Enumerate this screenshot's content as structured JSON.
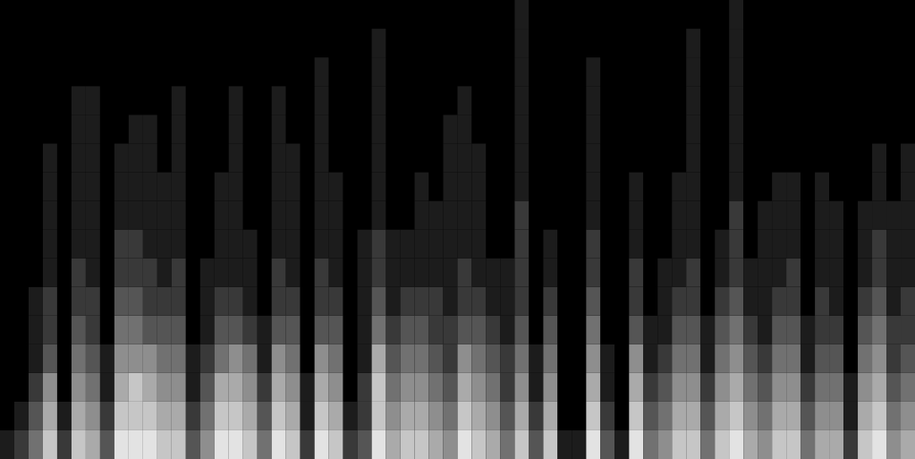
{
  "chart_data": {
    "type": "heatmap",
    "xlim": [
      0,
      64
    ],
    "ylim": [
      0,
      16
    ],
    "zlim": [
      0,
      9
    ],
    "tick_labels": false,
    "cells": [
      [
        1,
        0,
        0,
        0,
        0,
        0,
        0,
        0,
        0,
        0,
        0,
        0,
        0,
        0,
        0,
        0
      ],
      [
        2,
        1,
        0,
        0,
        0,
        0,
        0,
        0,
        0,
        0,
        0,
        0,
        0,
        0,
        0,
        0
      ],
      [
        4,
        3,
        2,
        1,
        1,
        1,
        0,
        0,
        0,
        0,
        0,
        0,
        0,
        0,
        0,
        0
      ],
      [
        7,
        6,
        5,
        3,
        2,
        2,
        1,
        1,
        1,
        1,
        1,
        0,
        0,
        0,
        0,
        0
      ],
      [
        2,
        1,
        0,
        0,
        0,
        0,
        0,
        0,
        0,
        0,
        0,
        0,
        0,
        0,
        0,
        0
      ],
      [
        7,
        6,
        5,
        4,
        3,
        2,
        2,
        1,
        1,
        1,
        1,
        1,
        1,
        0,
        0,
        0
      ],
      [
        6,
        5,
        4,
        3,
        2,
        2,
        1,
        1,
        1,
        1,
        1,
        1,
        1,
        0,
        0,
        0
      ],
      [
        3,
        2,
        1,
        1,
        0,
        0,
        0,
        0,
        0,
        0,
        0,
        0,
        0,
        0,
        0,
        0
      ],
      [
        8,
        7,
        6,
        5,
        4,
        3,
        2,
        2,
        1,
        1,
        1,
        0,
        0,
        0,
        0,
        0
      ],
      [
        8,
        7,
        7,
        5,
        4,
        3,
        2,
        2,
        1,
        1,
        1,
        1,
        0,
        0,
        0,
        0
      ],
      [
        8,
        7,
        6,
        5,
        3,
        2,
        2,
        1,
        1,
        1,
        1,
        1,
        0,
        0,
        0,
        0
      ],
      [
        7,
        6,
        5,
        4,
        3,
        2,
        1,
        1,
        1,
        1,
        0,
        0,
        0,
        0,
        0,
        0
      ],
      [
        7,
        6,
        5,
        4,
        3,
        2,
        2,
        1,
        1,
        1,
        1,
        1,
        1,
        0,
        0,
        0
      ],
      [
        3,
        2,
        1,
        1,
        0,
        0,
        0,
        0,
        0,
        0,
        0,
        0,
        0,
        0,
        0,
        0
      ],
      [
        5,
        4,
        3,
        2,
        1,
        1,
        1,
        0,
        0,
        0,
        0,
        0,
        0,
        0,
        0,
        0
      ],
      [
        8,
        7,
        6,
        4,
        3,
        2,
        1,
        1,
        1,
        1,
        0,
        0,
        0,
        0,
        0,
        0
      ],
      [
        8,
        7,
        6,
        5,
        3,
        2,
        1,
        1,
        1,
        1,
        1,
        1,
        1,
        0,
        0,
        0
      ],
      [
        7,
        6,
        5,
        4,
        2,
        1,
        1,
        1,
        0,
        0,
        0,
        0,
        0,
        0,
        0,
        0
      ],
      [
        4,
        3,
        2,
        1,
        1,
        0,
        0,
        0,
        0,
        0,
        0,
        0,
        0,
        0,
        0,
        0
      ],
      [
        8,
        7,
        6,
        5,
        3,
        2,
        2,
        1,
        1,
        1,
        1,
        1,
        1,
        0,
        0,
        0
      ],
      [
        7,
        6,
        5,
        4,
        3,
        2,
        1,
        1,
        1,
        1,
        1,
        0,
        0,
        0,
        0,
        0
      ],
      [
        2,
        1,
        1,
        0,
        0,
        0,
        0,
        0,
        0,
        0,
        0,
        0,
        0,
        0,
        0,
        0
      ],
      [
        8,
        7,
        6,
        5,
        3,
        2,
        2,
        1,
        1,
        1,
        1,
        1,
        1,
        1,
        0,
        0
      ],
      [
        7,
        6,
        5,
        4,
        3,
        2,
        1,
        1,
        1,
        1,
        0,
        0,
        0,
        0,
        0,
        0
      ],
      [
        2,
        1,
        0,
        0,
        0,
        0,
        0,
        0,
        0,
        0,
        0,
        0,
        0,
        0,
        0,
        0
      ],
      [
        3,
        2,
        2,
        1,
        1,
        1,
        1,
        1,
        0,
        0,
        0,
        0,
        0,
        0,
        0,
        0
      ],
      [
        8,
        7,
        7,
        6,
        4,
        3,
        2,
        2,
        1,
        1,
        1,
        1,
        1,
        1,
        1,
        0
      ],
      [
        6,
        5,
        4,
        3,
        2,
        1,
        1,
        1,
        0,
        0,
        0,
        0,
        0,
        0,
        0,
        0
      ],
      [
        7,
        6,
        5,
        4,
        3,
        2,
        1,
        1,
        0,
        0,
        0,
        0,
        0,
        0,
        0,
        0
      ],
      [
        7,
        6,
        5,
        4,
        3,
        2,
        1,
        1,
        1,
        1,
        0,
        0,
        0,
        0,
        0,
        0
      ],
      [
        6,
        5,
        4,
        3,
        2,
        2,
        1,
        1,
        1,
        0,
        0,
        0,
        0,
        0,
        0,
        0
      ],
      [
        5,
        4,
        3,
        2,
        2,
        1,
        1,
        1,
        1,
        1,
        1,
        1,
        0,
        0,
        0,
        0
      ],
      [
        8,
        7,
        6,
        5,
        3,
        2,
        2,
        1,
        1,
        1,
        1,
        1,
        1,
        0,
        0,
        0
      ],
      [
        7,
        6,
        5,
        4,
        3,
        2,
        1,
        1,
        1,
        1,
        1,
        0,
        0,
        0,
        0,
        0
      ],
      [
        6,
        5,
        4,
        3,
        2,
        1,
        1,
        0,
        0,
        0,
        0,
        0,
        0,
        0,
        0,
        0
      ],
      [
        4,
        3,
        2,
        2,
        1,
        1,
        1,
        0,
        0,
        0,
        0,
        0,
        0,
        0,
        0,
        0
      ],
      [
        7,
        6,
        5,
        4,
        3,
        2,
        2,
        2,
        2,
        1,
        1,
        1,
        1,
        1,
        1,
        1
      ],
      [
        3,
        2,
        1,
        1,
        0,
        0,
        0,
        0,
        0,
        0,
        0,
        0,
        0,
        0,
        0,
        0
      ],
      [
        7,
        6,
        5,
        4,
        3,
        2,
        1,
        1,
        0,
        0,
        0,
        0,
        0,
        0,
        0,
        0
      ],
      [
        1,
        0,
        0,
        0,
        0,
        0,
        0,
        0,
        0,
        0,
        0,
        0,
        0,
        0,
        0,
        0
      ],
      [
        1,
        0,
        0,
        0,
        0,
        0,
        0,
        0,
        0,
        0,
        0,
        0,
        0,
        0,
        0,
        0
      ],
      [
        8,
        7,
        6,
        5,
        4,
        3,
        2,
        2,
        1,
        1,
        1,
        1,
        1,
        1,
        0,
        0
      ],
      [
        3,
        2,
        1,
        1,
        0,
        0,
        0,
        0,
        0,
        0,
        0,
        0,
        0,
        0,
        0,
        0
      ],
      [
        1,
        0,
        0,
        0,
        0,
        0,
        0,
        0,
        0,
        0,
        0,
        0,
        0,
        0,
        0,
        0
      ],
      [
        8,
        7,
        6,
        5,
        3,
        2,
        2,
        1,
        1,
        1,
        0,
        0,
        0,
        0,
        0,
        0
      ],
      [
        4,
        3,
        2,
        1,
        1,
        0,
        0,
        0,
        0,
        0,
        0,
        0,
        0,
        0,
        0,
        0
      ],
      [
        5,
        4,
        3,
        2,
        1,
        1,
        1,
        0,
        0,
        0,
        0,
        0,
        0,
        0,
        0,
        0
      ],
      [
        7,
        6,
        5,
        4,
        3,
        2,
        1,
        1,
        1,
        1,
        0,
        0,
        0,
        0,
        0,
        0
      ],
      [
        7,
        6,
        5,
        4,
        3,
        2,
        2,
        1,
        1,
        1,
        1,
        1,
        1,
        1,
        1,
        0
      ],
      [
        4,
        3,
        2,
        1,
        1,
        0,
        0,
        0,
        0,
        0,
        0,
        0,
        0,
        0,
        0,
        0
      ],
      [
        7,
        6,
        5,
        4,
        3,
        2,
        1,
        1,
        0,
        0,
        0,
        0,
        0,
        0,
        0,
        0
      ],
      [
        8,
        7,
        6,
        5,
        4,
        3,
        2,
        2,
        2,
        1,
        1,
        1,
        1,
        1,
        1,
        1
      ],
      [
        6,
        5,
        4,
        3,
        2,
        1,
        1,
        0,
        0,
        0,
        0,
        0,
        0,
        0,
        0,
        0
      ],
      [
        5,
        4,
        3,
        2,
        1,
        1,
        1,
        1,
        1,
        0,
        0,
        0,
        0,
        0,
        0,
        0
      ],
      [
        7,
        6,
        5,
        4,
        3,
        2,
        1,
        1,
        1,
        1,
        0,
        0,
        0,
        0,
        0,
        0
      ],
      [
        7,
        6,
        5,
        4,
        3,
        2,
        2,
        1,
        1,
        1,
        0,
        0,
        0,
        0,
        0,
        0
      ],
      [
        4,
        3,
        2,
        1,
        1,
        0,
        0,
        0,
        0,
        0,
        0,
        0,
        0,
        0,
        0,
        0
      ],
      [
        6,
        5,
        4,
        3,
        2,
        2,
        1,
        1,
        1,
        1,
        0,
        0,
        0,
        0,
        0,
        0
      ],
      [
        6,
        5,
        4,
        3,
        2,
        1,
        1,
        1,
        1,
        0,
        0,
        0,
        0,
        0,
        0,
        0
      ],
      [
        2,
        1,
        1,
        0,
        0,
        0,
        0,
        0,
        0,
        0,
        0,
        0,
        0,
        0,
        0,
        0
      ],
      [
        7,
        6,
        5,
        4,
        3,
        2,
        1,
        1,
        1,
        0,
        0,
        0,
        0,
        0,
        0,
        0
      ],
      [
        8,
        7,
        6,
        5,
        4,
        3,
        2,
        2,
        1,
        1,
        1,
        0,
        0,
        0,
        0,
        0
      ],
      [
        5,
        4,
        3,
        2,
        2,
        1,
        1,
        1,
        1,
        0,
        0,
        0,
        0,
        0,
        0,
        0
      ],
      [
        6,
        5,
        4,
        3,
        2,
        2,
        1,
        1,
        1,
        1,
        1,
        0,
        0,
        0,
        0,
        0
      ]
    ]
  }
}
